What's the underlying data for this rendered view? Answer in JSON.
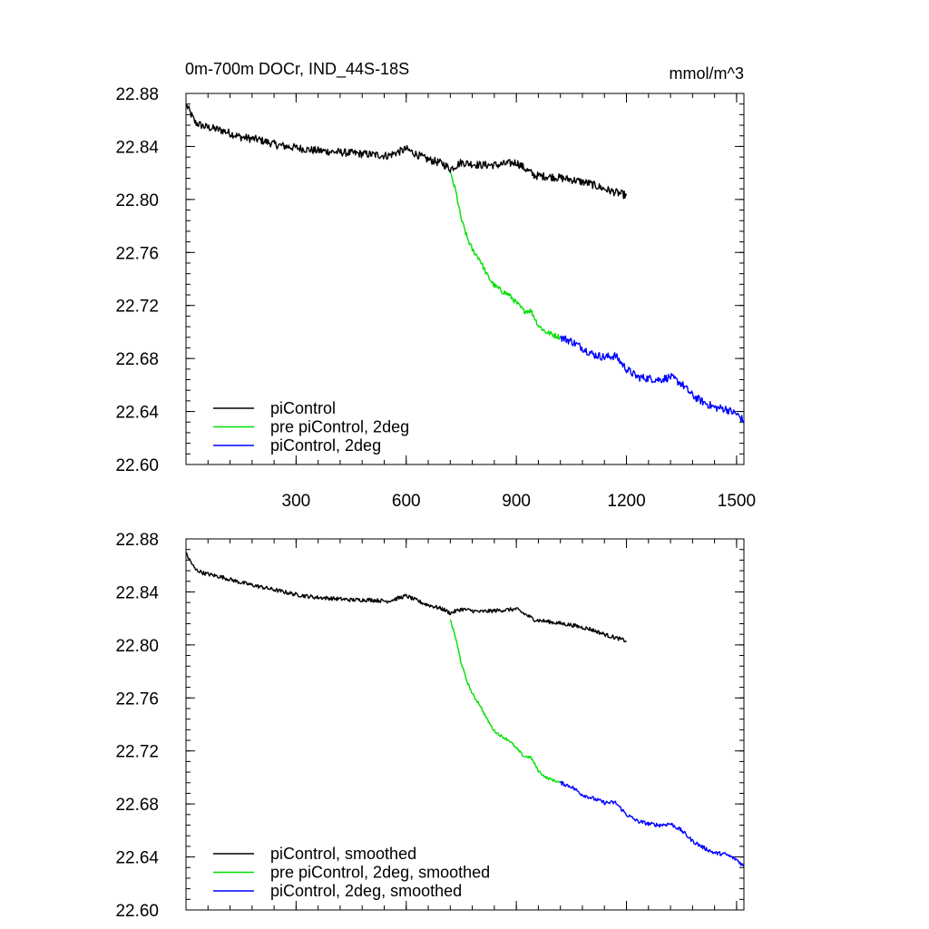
{
  "header": {
    "title": "0m-700m DOCr, IND_44S-18S",
    "units": "mmol/m^3"
  },
  "chart_data": [
    {
      "type": "line",
      "panel": "top",
      "xlim": [
        0,
        1520
      ],
      "ylim": [
        22.6,
        22.88
      ],
      "yticks": [
        22.6,
        22.64,
        22.68,
        22.72,
        22.76,
        22.8,
        22.84,
        22.88
      ],
      "ytick_labels": [
        "22.60",
        "22.64",
        "22.68",
        "22.72",
        "22.76",
        "22.80",
        "22.84",
        "22.88"
      ],
      "xticks": [
        300,
        600,
        900,
        1200,
        1500
      ],
      "xtick_labels": [
        "300",
        "600",
        "900",
        "1200",
        "1500"
      ],
      "legend_position": "bottom-left",
      "grid": false,
      "series": [
        {
          "name": "piControl",
          "color": "#000000",
          "x": [
            0,
            25,
            50,
            100,
            150,
            200,
            250,
            300,
            350,
            400,
            450,
            500,
            550,
            600,
            650,
            700,
            720,
            750,
            800,
            850,
            900,
            950,
            1000,
            1050,
            1100,
            1150,
            1200
          ],
          "y": [
            22.872,
            22.858,
            22.855,
            22.852,
            22.847,
            22.845,
            22.841,
            22.839,
            22.837,
            22.836,
            22.835,
            22.834,
            22.833,
            22.838,
            22.831,
            22.827,
            22.823,
            22.828,
            22.826,
            22.826,
            22.828,
            22.818,
            22.817,
            22.815,
            22.812,
            22.807,
            22.803
          ],
          "noise": 0.003
        },
        {
          "name": "pre piControl, 2deg",
          "color": "#00e000",
          "x": [
            720,
            735,
            750,
            765,
            780,
            800,
            820,
            840,
            860,
            880,
            900,
            920,
            940,
            960,
            980,
            1000,
            1020
          ],
          "y": [
            22.82,
            22.806,
            22.785,
            22.772,
            22.762,
            22.755,
            22.743,
            22.735,
            22.731,
            22.728,
            22.722,
            22.716,
            22.716,
            22.705,
            22.7,
            22.698,
            22.696
          ],
          "noise": 0.002
        },
        {
          "name": "piControl, 2deg",
          "color": "#0000ff",
          "x": [
            1020,
            1050,
            1080,
            1110,
            1140,
            1170,
            1200,
            1230,
            1260,
            1290,
            1320,
            1350,
            1380,
            1410,
            1440,
            1470,
            1500,
            1520
          ],
          "y": [
            22.696,
            22.693,
            22.688,
            22.683,
            22.681,
            22.682,
            22.672,
            22.666,
            22.665,
            22.664,
            22.666,
            22.661,
            22.652,
            22.647,
            22.643,
            22.642,
            22.638,
            22.633
          ],
          "noise": 0.003
        }
      ]
    },
    {
      "type": "line",
      "panel": "bottom",
      "xlim": [
        0,
        1520
      ],
      "ylim": [
        22.6,
        22.88
      ],
      "yticks": [
        22.6,
        22.64,
        22.68,
        22.72,
        22.76,
        22.8,
        22.84,
        22.88
      ],
      "ytick_labels": [
        "22.60",
        "22.64",
        "22.68",
        "22.72",
        "22.76",
        "22.80",
        "22.84",
        "22.88"
      ],
      "xticks": [
        300,
        600,
        900,
        1200,
        1500
      ],
      "xtick_labels": [],
      "legend_position": "bottom-left",
      "grid": false,
      "series": [
        {
          "name": "piControl, smoothed",
          "color": "#000000",
          "x": [
            0,
            25,
            50,
            100,
            150,
            200,
            250,
            300,
            350,
            400,
            450,
            500,
            550,
            600,
            650,
            700,
            720,
            750,
            800,
            850,
            900,
            950,
            1000,
            1050,
            1100,
            1150,
            1200
          ],
          "y": [
            22.869,
            22.857,
            22.854,
            22.851,
            22.847,
            22.844,
            22.841,
            22.838,
            22.836,
            22.835,
            22.834,
            22.834,
            22.833,
            22.837,
            22.831,
            22.827,
            22.824,
            22.827,
            22.825,
            22.826,
            22.827,
            22.819,
            22.817,
            22.815,
            22.812,
            22.807,
            22.803
          ],
          "noise": 0.0015
        },
        {
          "name": "pre piControl, 2deg, smoothed",
          "color": "#00e000",
          "x": [
            720,
            735,
            750,
            765,
            780,
            800,
            820,
            840,
            860,
            880,
            900,
            920,
            940,
            960,
            980,
            1000,
            1020
          ],
          "y": [
            22.819,
            22.805,
            22.786,
            22.773,
            22.763,
            22.755,
            22.744,
            22.735,
            22.731,
            22.728,
            22.722,
            22.716,
            22.715,
            22.705,
            22.7,
            22.698,
            22.696
          ],
          "noise": 0.001
        },
        {
          "name": "piControl, 2deg, smoothed",
          "color": "#0000ff",
          "x": [
            1020,
            1050,
            1080,
            1110,
            1140,
            1170,
            1200,
            1230,
            1260,
            1290,
            1320,
            1350,
            1380,
            1410,
            1440,
            1470,
            1500,
            1520
          ],
          "y": [
            22.696,
            22.693,
            22.687,
            22.684,
            22.681,
            22.681,
            22.672,
            22.667,
            22.665,
            22.664,
            22.665,
            22.66,
            22.652,
            22.647,
            22.643,
            22.642,
            22.638,
            22.633
          ],
          "noise": 0.0015
        }
      ]
    }
  ]
}
